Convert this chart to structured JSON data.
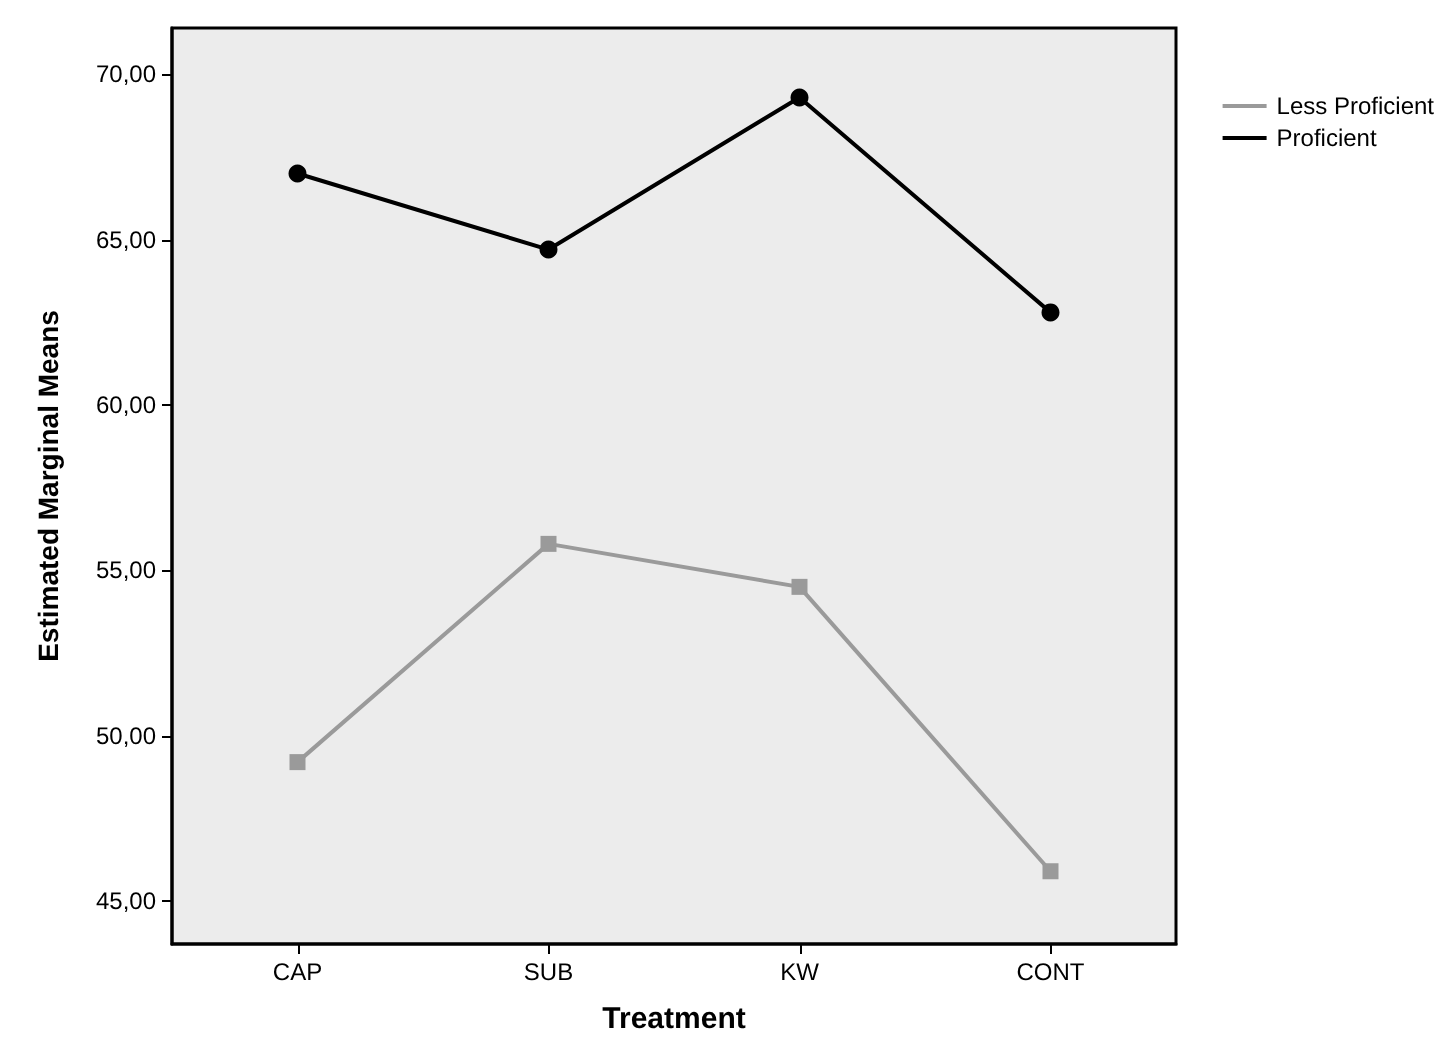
{
  "chart_data": {
    "type": "line",
    "xlabel": "Treatment",
    "ylabel": "Estimated Marginal Means",
    "categories": [
      "CAP",
      "SUB",
      "KW",
      "CONT"
    ],
    "series": [
      {
        "name": "Less Proficient",
        "color": "#9a9a9a",
        "marker": "square",
        "values": [
          49.2,
          55.8,
          54.5,
          45.9
        ]
      },
      {
        "name": "Proficient",
        "color": "#000000",
        "marker": "circle",
        "values": [
          67.0,
          64.7,
          69.3,
          62.8
        ]
      }
    ],
    "ylim": [
      43.7,
      71.4
    ],
    "yticks": [
      {
        "value": 45,
        "label": "45,00"
      },
      {
        "value": 50,
        "label": "50,00"
      },
      {
        "value": 55,
        "label": "55,00"
      },
      {
        "value": 60,
        "label": "60,00"
      },
      {
        "value": 65,
        "label": "65,00"
      },
      {
        "value": 70,
        "label": "70,00"
      }
    ],
    "grid": false,
    "legend": "top right",
    "line_style": "solid"
  }
}
